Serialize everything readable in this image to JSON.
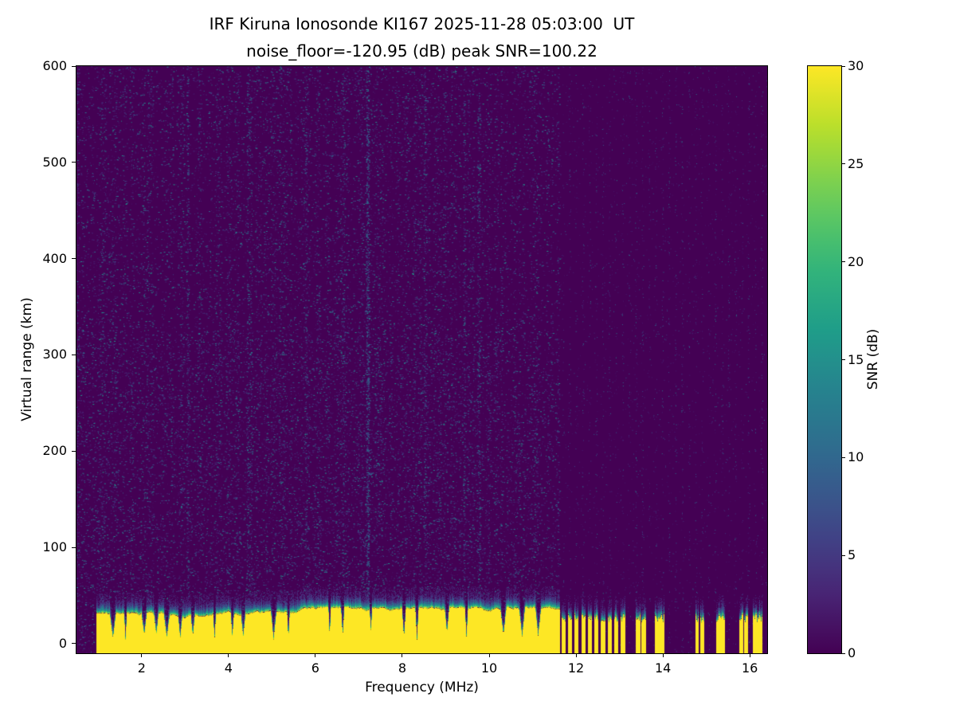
{
  "chart_data": {
    "type": "heatmap",
    "title": "IRF Kiruna Ionosonde KI167 2025-11-28 05:03:00  UT",
    "subtitle": "noise_floor=-120.95 (dB) peak SNR=100.22",
    "xlabel": "Frequency (MHz)",
    "ylabel": "Virtual range (km)",
    "xlim": [
      0.5,
      16.4
    ],
    "ylim": [
      -10,
      600
    ],
    "xticks": [
      2,
      4,
      6,
      8,
      10,
      12,
      14,
      16
    ],
    "yticks": [
      0,
      100,
      200,
      300,
      400,
      500,
      600
    ],
    "grid": false,
    "colorbar": {
      "label": "SNR (dB)",
      "min": 0,
      "max": 30,
      "ticks": [
        0,
        5,
        10,
        15,
        20,
        25,
        30
      ],
      "colormap": "viridis"
    },
    "noise_floor_db": -120.95,
    "peak_snr_db": 100.22,
    "background_snr_db": 0,
    "noise_speckle": {
      "typical_snr_db": [
        2,
        14
      ],
      "description": "sparse blue/teal speckle over dark purple background, column-structured, sparser above 11.62 MHz"
    },
    "streaks": [
      {
        "freq_mhz": 4.45,
        "strength": 220
      },
      {
        "freq_mhz": 7.2,
        "strength": 700
      },
      {
        "freq_mhz": 9.75,
        "strength": 220
      }
    ],
    "ground_clutter": {
      "snr_db": 30,
      "top_km_mean": 31,
      "freq_start_mhz": 0.95,
      "freq_continuous_end_mhz": 11.62,
      "notch_freqs_mhz": [
        1.33,
        1.62,
        2.05,
        2.33,
        2.57,
        2.88,
        3.17,
        3.67,
        4.08,
        4.33,
        5.03,
        5.37,
        6.32,
        6.62,
        7.27,
        8.03,
        8.33,
        9.02,
        9.47,
        10.32,
        10.75,
        11.12
      ],
      "bar_cluster": {
        "start_mhz": 11.7,
        "end_mhz": 13.08,
        "spacing_mhz": 0.1525
      },
      "isolated_bars_mhz": [
        13.42,
        13.55,
        13.86,
        13.97,
        14.78,
        14.89,
        15.27,
        15.38,
        15.8,
        15.91,
        16.12,
        16.22
      ]
    }
  }
}
